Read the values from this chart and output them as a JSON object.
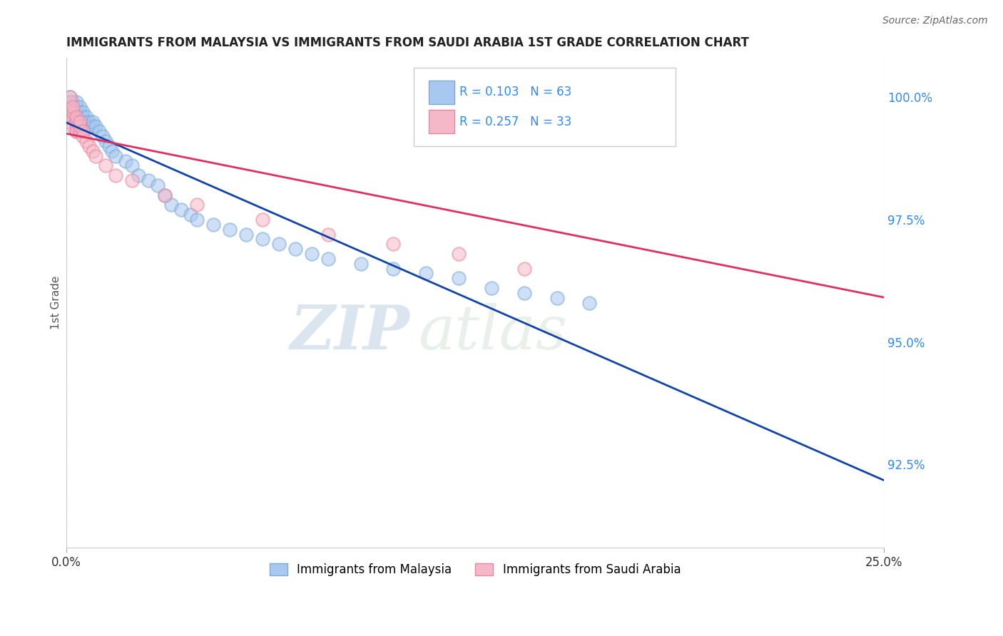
{
  "title": "IMMIGRANTS FROM MALAYSIA VS IMMIGRANTS FROM SAUDI ARABIA 1ST GRADE CORRELATION CHART",
  "source": "Source: ZipAtlas.com",
  "xlabel": "",
  "ylabel": "1st Grade",
  "xlim": [
    0.0,
    0.25
  ],
  "ylim": [
    0.908,
    1.008
  ],
  "x_ticks": [
    0.0,
    0.25
  ],
  "x_tick_labels": [
    "0.0%",
    "25.0%"
  ],
  "y_ticks": [
    0.925,
    0.95,
    0.975,
    1.0
  ],
  "y_tick_labels": [
    "92.5%",
    "95.0%",
    "97.5%",
    "100.0%"
  ],
  "legend_R_malaysia": "R = 0.103",
  "legend_N_malaysia": "N = 63",
  "legend_R_saudi": "R = 0.257",
  "legend_N_saudi": "N = 33",
  "legend_label_malaysia": "Immigrants from Malaysia",
  "legend_label_saudi": "Immigrants from Saudi Arabia",
  "malaysia_color": "#A8C8F0",
  "malaysia_edge_color": "#7AAAD8",
  "saudi_color": "#F5B8C8",
  "saudi_edge_color": "#E888A0",
  "malaysia_line_color": "#1144AA",
  "saudi_line_color": "#E03060",
  "watermark_zip": "ZIP",
  "watermark_atlas": "atlas",
  "background_color": "#FFFFFF",
  "grid_color": "#CCCCCC",
  "malaysia_x": [
    0.001,
    0.001,
    0.001,
    0.001,
    0.001,
    0.002,
    0.002,
    0.002,
    0.003,
    0.003,
    0.003,
    0.003,
    0.003,
    0.003,
    0.003,
    0.004,
    0.004,
    0.004,
    0.004,
    0.004,
    0.005,
    0.005,
    0.005,
    0.005,
    0.006,
    0.006,
    0.007,
    0.007,
    0.008,
    0.008,
    0.009,
    0.01,
    0.011,
    0.012,
    0.013,
    0.014,
    0.015,
    0.018,
    0.02,
    0.022,
    0.025,
    0.028,
    0.03,
    0.032,
    0.035,
    0.038,
    0.04,
    0.045,
    0.05,
    0.055,
    0.06,
    0.065,
    0.07,
    0.075,
    0.08,
    0.09,
    0.1,
    0.11,
    0.12,
    0.13,
    0.14,
    0.15,
    0.16
  ],
  "malaysia_y": [
    0.996,
    0.997,
    0.998,
    0.999,
    1.0,
    0.997,
    0.998,
    0.999,
    0.993,
    0.994,
    0.995,
    0.996,
    0.997,
    0.998,
    0.999,
    0.994,
    0.995,
    0.996,
    0.997,
    0.998,
    0.994,
    0.995,
    0.996,
    0.997,
    0.995,
    0.996,
    0.994,
    0.995,
    0.994,
    0.995,
    0.994,
    0.993,
    0.992,
    0.991,
    0.99,
    0.989,
    0.988,
    0.987,
    0.986,
    0.984,
    0.983,
    0.982,
    0.98,
    0.978,
    0.977,
    0.976,
    0.975,
    0.974,
    0.973,
    0.972,
    0.971,
    0.97,
    0.969,
    0.968,
    0.967,
    0.966,
    0.965,
    0.964,
    0.963,
    0.961,
    0.96,
    0.959,
    0.958
  ],
  "saudi_x": [
    0.001,
    0.001,
    0.001,
    0.001,
    0.001,
    0.002,
    0.002,
    0.002,
    0.002,
    0.003,
    0.003,
    0.003,
    0.003,
    0.004,
    0.004,
    0.004,
    0.005,
    0.005,
    0.006,
    0.007,
    0.008,
    0.009,
    0.012,
    0.015,
    0.02,
    0.03,
    0.04,
    0.06,
    0.08,
    0.1,
    0.12,
    0.14,
    0.175
  ],
  "saudi_y": [
    0.997,
    0.998,
    0.999,
    1.0,
    0.995,
    0.996,
    0.997,
    0.998,
    0.994,
    0.994,
    0.995,
    0.996,
    0.993,
    0.993,
    0.994,
    0.995,
    0.993,
    0.992,
    0.991,
    0.99,
    0.989,
    0.988,
    0.986,
    0.984,
    0.983,
    0.98,
    0.978,
    0.975,
    0.972,
    0.97,
    0.968,
    0.965,
    1.0
  ]
}
